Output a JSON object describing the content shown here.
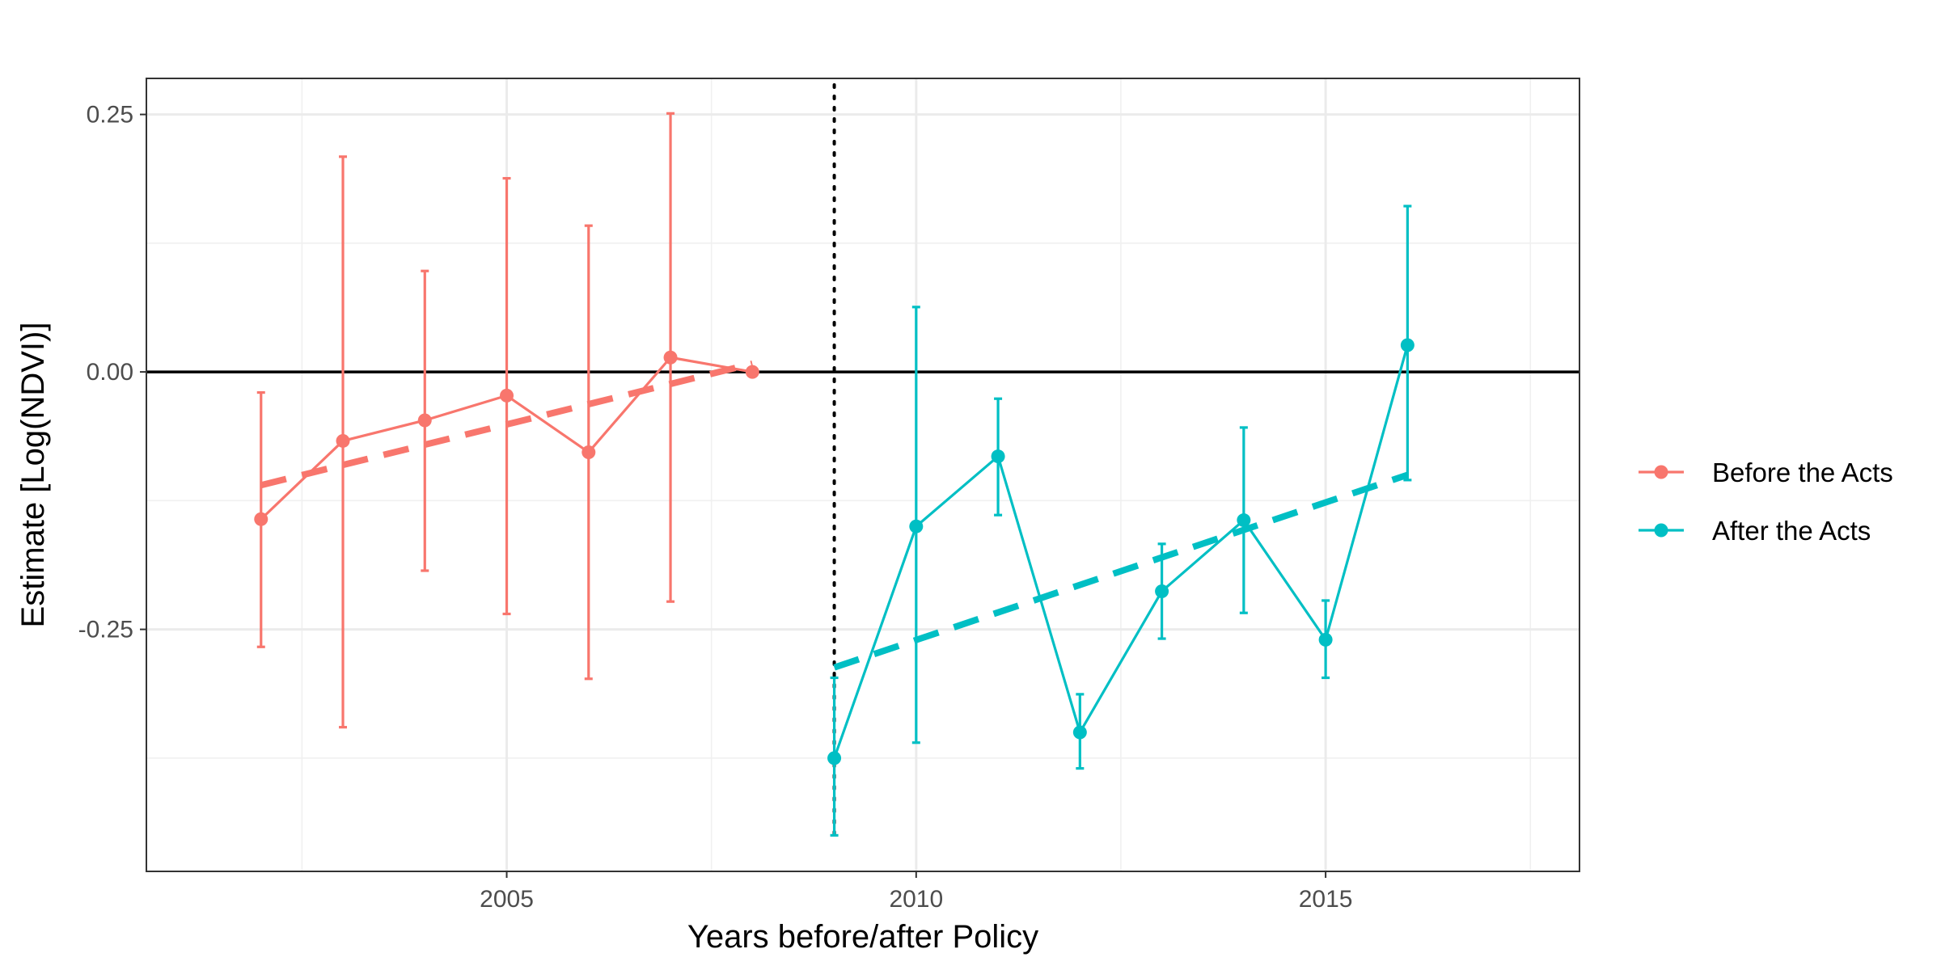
{
  "chart_data": {
    "type": "line",
    "title": "",
    "xlabel": "Years before/after Policy",
    "ylabel": "Estimate [Log(NDVI)]",
    "xlim": [
      2000.6,
      2018.1
    ],
    "ylim": [
      -0.485,
      0.285
    ],
    "x_ticks": [
      2005,
      2010,
      2015
    ],
    "x_tick_labels": [
      "2005",
      "2010",
      "2015"
    ],
    "y_ticks": [
      0.25,
      0.0,
      -0.25
    ],
    "y_tick_labels": [
      "0.25",
      "0.00",
      "-0.25"
    ],
    "grid": true,
    "legend_position": "right",
    "reference_lines": {
      "horizontal_y": 0.0,
      "vertical_x": 2009
    },
    "series": [
      {
        "name": "Before the Acts",
        "color": "#F8766D",
        "x": [
          2002,
          2003,
          2004,
          2005,
          2006,
          2007,
          2008
        ],
        "y": [
          -0.143,
          -0.067,
          -0.047,
          -0.023,
          -0.078,
          0.014,
          0.0
        ],
        "lower": [
          -0.267,
          -0.345,
          -0.193,
          -0.235,
          -0.298,
          -0.223,
          null
        ],
        "upper": [
          -0.02,
          0.209,
          0.098,
          0.188,
          0.142,
          0.251,
          null
        ],
        "trend": {
          "x": [
            2002,
            2008
          ],
          "y": [
            -0.11,
            0.008
          ]
        }
      },
      {
        "name": "After the Acts",
        "color": "#00BFC4",
        "x": [
          2009,
          2010,
          2011,
          2012,
          2013,
          2014,
          2015,
          2016
        ],
        "y": [
          -0.375,
          -0.15,
          -0.082,
          -0.35,
          -0.213,
          -0.144,
          -0.26,
          0.026
        ],
        "lower": [
          -0.45,
          -0.36,
          -0.139,
          -0.385,
          -0.259,
          -0.234,
          -0.297,
          -0.105
        ],
        "upper": [
          -0.297,
          0.063,
          -0.026,
          -0.313,
          -0.167,
          -0.054,
          -0.222,
          0.161
        ],
        "trend": {
          "x": [
            2009,
            2016
          ],
          "y": [
            -0.287,
            -0.1
          ]
        }
      }
    ]
  }
}
